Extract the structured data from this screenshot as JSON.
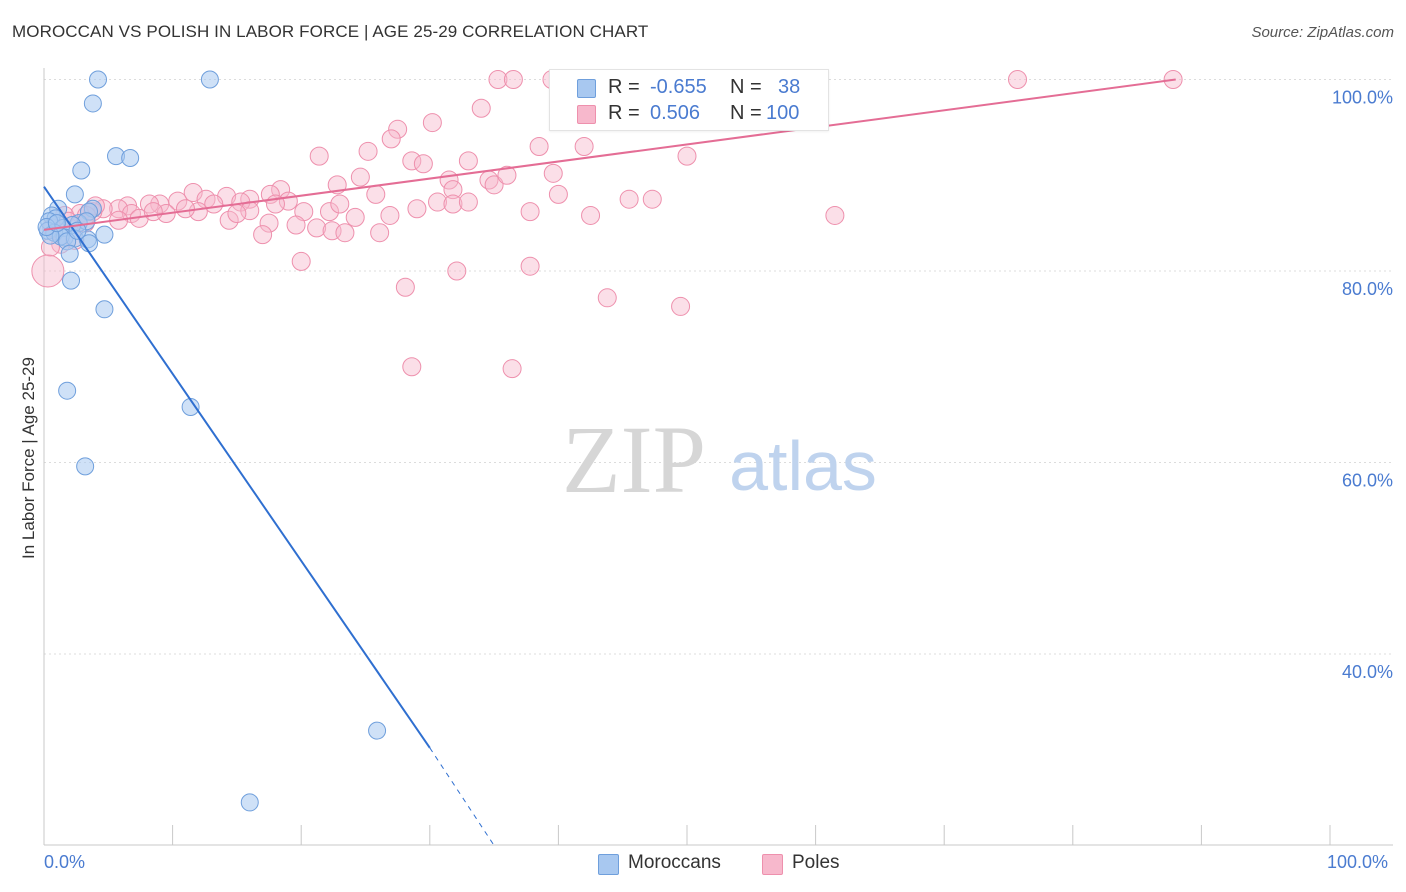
{
  "title": "MOROCCAN VS POLISH IN LABOR FORCE | AGE 25-29 CORRELATION CHART",
  "source": "Source: ZipAtlas.com",
  "watermark": {
    "zip": "ZIP",
    "atlas": "atlas"
  },
  "legend": {
    "moroccans": {
      "r_label": "R =",
      "r_value": "-0.655",
      "n_label": "N =",
      "n_value": "38"
    },
    "poles": {
      "r_label": "R =",
      "r_value": "0.506",
      "n_label": "N =",
      "n_value": "100"
    }
  },
  "bottom_legend": {
    "moroccans": "Moroccans",
    "poles": "Poles"
  },
  "colors": {
    "moroccans_fill": "#a8c8f0",
    "moroccans_stroke": "#6f9fdc",
    "moroccans_line": "#2f6fd0",
    "poles_fill": "#f7b8cc",
    "poles_stroke": "#ee90ad",
    "poles_line": "#e46d95",
    "tick_text": "#4a7bd0",
    "grid": "#dcdcdc"
  },
  "chart_data": {
    "type": "scatter",
    "title": "MOROCCAN VS POLISH IN LABOR FORCE | AGE 25-29 CORRELATION CHART",
    "xlabel": "",
    "ylabel": "In Labor Force | Age 25-29",
    "xlim": [
      0,
      100
    ],
    "ylim": [
      20,
      101.5
    ],
    "x_tick_labels": [
      "0.0%",
      "100.0%"
    ],
    "y_ticks": [
      {
        "value": 100,
        "label": "100.0%"
      },
      {
        "value": 80,
        "label": "80.0%"
      },
      {
        "value": 60,
        "label": "60.0%"
      },
      {
        "value": 40,
        "label": "40.0%"
      }
    ],
    "series": [
      {
        "name": "Moroccans",
        "r": -0.655,
        "n": 38,
        "points": [
          [
            4.2,
            100.0
          ],
          [
            12.9,
            100.0
          ],
          [
            3.8,
            97.5
          ],
          [
            5.6,
            92.0
          ],
          [
            6.7,
            91.8
          ],
          [
            2.9,
            90.5
          ],
          [
            2.4,
            88.0
          ],
          [
            1.1,
            86.5
          ],
          [
            3.8,
            86.5
          ],
          [
            3.5,
            86.2
          ],
          [
            0.6,
            85.8
          ],
          [
            0.9,
            85.5
          ],
          [
            0.4,
            85.2
          ],
          [
            2.7,
            85.0
          ],
          [
            3.3,
            85.2
          ],
          [
            2.2,
            84.8
          ],
          [
            1.5,
            84.5
          ],
          [
            0.3,
            84.2
          ],
          [
            0.8,
            84.0
          ],
          [
            1.6,
            83.5
          ],
          [
            1.3,
            83.6
          ],
          [
            0.5,
            83.7
          ],
          [
            2.4,
            83.4
          ],
          [
            3.4,
            83.3
          ],
          [
            4.7,
            83.8
          ],
          [
            1.8,
            83.1
          ],
          [
            3.5,
            82.9
          ],
          [
            2.0,
            81.8
          ],
          [
            2.1,
            79.0
          ],
          [
            4.7,
            76.0
          ],
          [
            1.8,
            67.5
          ],
          [
            11.4,
            65.8
          ],
          [
            3.2,
            59.6
          ],
          [
            25.9,
            32.0
          ],
          [
            16.0,
            24.5
          ],
          [
            0.2,
            84.6
          ],
          [
            1.0,
            85.0
          ],
          [
            2.6,
            84.2
          ]
        ],
        "trend": {
          "x": [
            0.0,
            30.0
          ],
          "y": [
            88.8,
            30.2
          ],
          "dashed_to": [
            35.0,
            20.0
          ]
        }
      },
      {
        "name": "Poles",
        "r": 0.506,
        "n": 100,
        "points": [
          [
            35.3,
            100.0
          ],
          [
            36.5,
            100.0
          ],
          [
            39.5,
            100.0
          ],
          [
            47.0,
            100.0
          ],
          [
            48.5,
            100.0
          ],
          [
            50.5,
            100.0
          ],
          [
            54.5,
            100.0
          ],
          [
            56.0,
            100.0
          ],
          [
            58.0,
            100.0
          ],
          [
            75.7,
            100.0
          ],
          [
            87.8,
            100.0
          ],
          [
            34.0,
            97.0
          ],
          [
            30.2,
            95.5
          ],
          [
            27.5,
            94.8
          ],
          [
            27.0,
            93.8
          ],
          [
            38.5,
            93.0
          ],
          [
            42.0,
            93.0
          ],
          [
            25.2,
            92.5
          ],
          [
            21.4,
            92.0
          ],
          [
            33.0,
            91.5
          ],
          [
            28.6,
            91.5
          ],
          [
            29.5,
            91.2
          ],
          [
            50.0,
            92.0
          ],
          [
            39.6,
            90.2
          ],
          [
            31.5,
            89.5
          ],
          [
            24.6,
            89.8
          ],
          [
            34.6,
            89.5
          ],
          [
            35.0,
            89.0
          ],
          [
            22.8,
            89.0
          ],
          [
            31.8,
            88.5
          ],
          [
            25.8,
            88.0
          ],
          [
            18.4,
            88.5
          ],
          [
            17.6,
            88.0
          ],
          [
            11.6,
            88.2
          ],
          [
            14.2,
            87.8
          ],
          [
            16.0,
            87.5
          ],
          [
            12.6,
            87.5
          ],
          [
            19.0,
            87.3
          ],
          [
            10.4,
            87.3
          ],
          [
            9.0,
            87.0
          ],
          [
            8.2,
            87.0
          ],
          [
            6.5,
            86.8
          ],
          [
            5.8,
            86.5
          ],
          [
            15.3,
            87.2
          ],
          [
            13.2,
            87.0
          ],
          [
            30.6,
            87.2
          ],
          [
            31.8,
            87.0
          ],
          [
            33.0,
            87.2
          ],
          [
            45.5,
            87.5
          ],
          [
            47.3,
            87.5
          ],
          [
            4.6,
            86.5
          ],
          [
            3.8,
            86.2
          ],
          [
            2.8,
            86.0
          ],
          [
            1.6,
            85.8
          ],
          [
            6.8,
            86.0
          ],
          [
            9.5,
            86.0
          ],
          [
            12.0,
            86.2
          ],
          [
            16.0,
            86.3
          ],
          [
            20.2,
            86.2
          ],
          [
            22.2,
            86.2
          ],
          [
            37.8,
            86.2
          ],
          [
            42.5,
            85.8
          ],
          [
            61.5,
            85.8
          ],
          [
            24.2,
            85.6
          ],
          [
            26.9,
            85.8
          ],
          [
            7.4,
            85.5
          ],
          [
            5.8,
            85.3
          ],
          [
            3.2,
            85.0
          ],
          [
            1.9,
            85.2
          ],
          [
            14.4,
            85.3
          ],
          [
            17.5,
            85.0
          ],
          [
            19.6,
            84.8
          ],
          [
            21.2,
            84.5
          ],
          [
            22.4,
            84.2
          ],
          [
            23.4,
            84.0
          ],
          [
            26.1,
            84.0
          ],
          [
            17.0,
            83.8
          ],
          [
            2.4,
            83.2
          ],
          [
            1.3,
            82.8
          ],
          [
            0.5,
            82.5
          ],
          [
            20.0,
            81.0
          ],
          [
            37.8,
            80.5
          ],
          [
            32.1,
            80.0
          ],
          [
            28.1,
            78.3
          ],
          [
            43.8,
            77.2
          ],
          [
            49.5,
            76.3
          ],
          [
            28.6,
            70.0
          ],
          [
            36.4,
            69.8
          ],
          [
            0.3,
            80.0
          ],
          [
            0.6,
            84.5
          ],
          [
            4.0,
            86.8
          ],
          [
            3.3,
            85.8
          ],
          [
            11.0,
            86.5
          ],
          [
            8.5,
            86.2
          ],
          [
            18.0,
            87.0
          ],
          [
            15.0,
            86.0
          ],
          [
            36.0,
            90.0
          ],
          [
            40.0,
            88.0
          ],
          [
            29.0,
            86.5
          ],
          [
            23.0,
            87.0
          ]
        ],
        "trend": {
          "x": [
            0.0,
            88.0
          ],
          "y": [
            84.3,
            100.0
          ]
        }
      }
    ]
  }
}
